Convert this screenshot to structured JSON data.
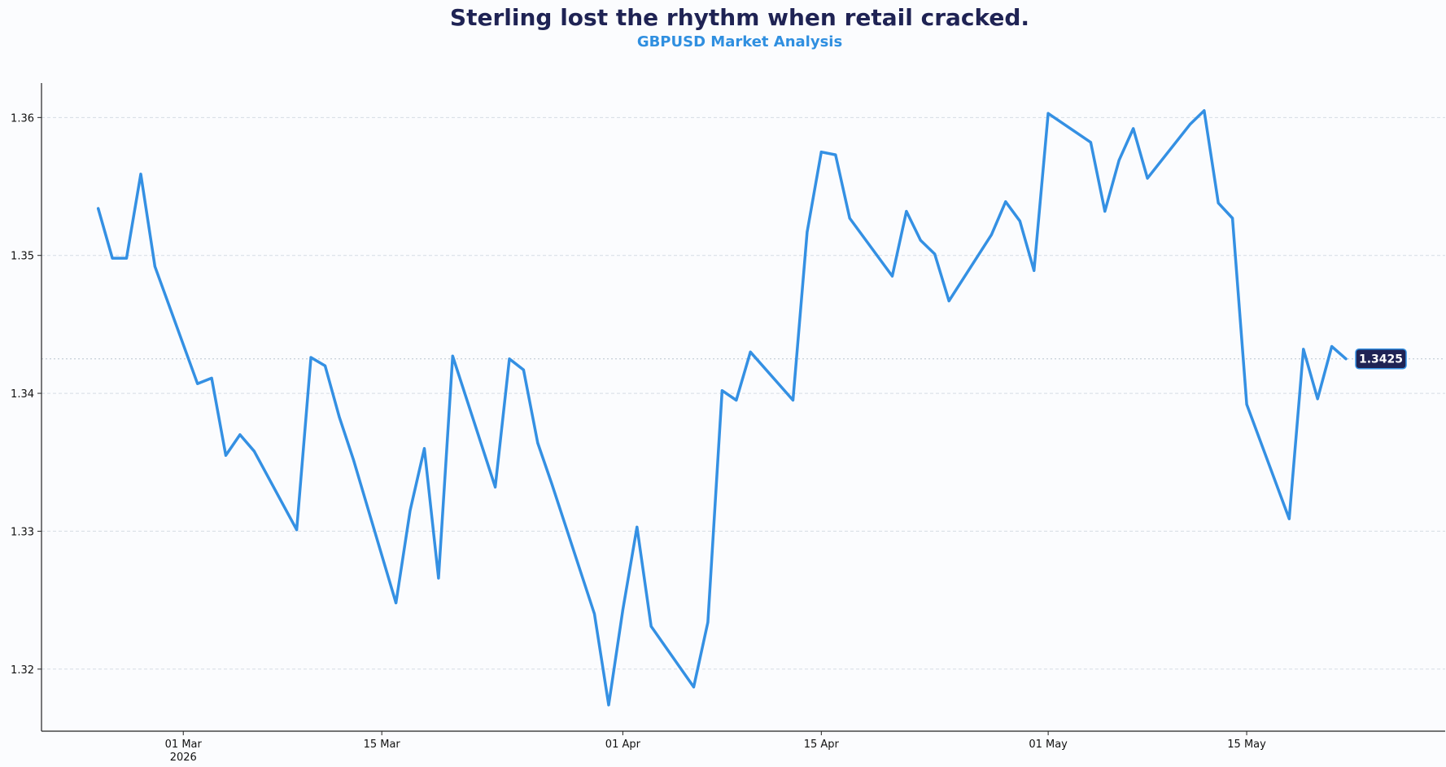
{
  "colors": {
    "title": "#1f2354",
    "subtitle": "#2f8fe0",
    "series": "#3490e3",
    "badge_bg": "#1f2354",
    "badge_text": "#ffffff"
  },
  "chart_data": {
    "type": "line",
    "title": "Sterling lost the rhythm when retail cracked.",
    "subtitle": "GBPUSD Market Analysis",
    "xlabel": "",
    "ylabel": "",
    "ylim": [
      1.3155,
      1.3625
    ],
    "xlim": [
      "2026-02-19",
      "2026-05-29"
    ],
    "grid": "horizontal-dashed",
    "yticks": [
      "1.32",
      "1.33",
      "1.34",
      "1.35",
      "1.36"
    ],
    "xticks": [
      {
        "date": "2026-03-01",
        "label": "01 Mar",
        "sublabel": "2026"
      },
      {
        "date": "2026-03-15",
        "label": "15 Mar",
        "sublabel": ""
      },
      {
        "date": "2026-04-01",
        "label": "01 Apr",
        "sublabel": ""
      },
      {
        "date": "2026-04-15",
        "label": "15 Apr",
        "sublabel": ""
      },
      {
        "date": "2026-05-01",
        "label": "01 May",
        "sublabel": ""
      },
      {
        "date": "2026-05-15",
        "label": "15 May",
        "sublabel": ""
      }
    ],
    "last_value_label": "1.3425",
    "last_value": 1.3425,
    "series": [
      {
        "points": [
          [
            "2026-02-23",
            1.3534
          ],
          [
            "2026-02-24",
            1.3498
          ],
          [
            "2026-02-25",
            1.3498
          ],
          [
            "2026-02-26",
            1.3559
          ],
          [
            "2026-02-27",
            1.3492
          ],
          [
            "2026-03-02",
            1.3407
          ],
          [
            "2026-03-03",
            1.3411
          ],
          [
            "2026-03-04",
            1.3355
          ],
          [
            "2026-03-05",
            1.337
          ],
          [
            "2026-03-06",
            1.3358
          ],
          [
            "2026-03-09",
            1.3301
          ],
          [
            "2026-03-10",
            1.3426
          ],
          [
            "2026-03-11",
            1.342
          ],
          [
            "2026-03-12",
            1.3383
          ],
          [
            "2026-03-13",
            1.3352
          ],
          [
            "2026-03-16",
            1.3248
          ],
          [
            "2026-03-17",
            1.3315
          ],
          [
            "2026-03-18",
            1.336
          ],
          [
            "2026-03-19",
            1.3266
          ],
          [
            "2026-03-20",
            1.3427
          ],
          [
            "2026-03-23",
            1.3332
          ],
          [
            "2026-03-24",
            1.3425
          ],
          [
            "2026-03-25",
            1.3417
          ],
          [
            "2026-03-26",
            1.3364
          ],
          [
            "2026-03-27",
            1.3334
          ],
          [
            "2026-03-30",
            1.324
          ],
          [
            "2026-03-31",
            1.3174
          ],
          [
            "2026-04-01",
            1.3243
          ],
          [
            "2026-04-02",
            1.3303
          ],
          [
            "2026-04-03",
            1.3231
          ],
          [
            "2026-04-06",
            1.3187
          ],
          [
            "2026-04-07",
            1.3234
          ],
          [
            "2026-04-08",
            1.3402
          ],
          [
            "2026-04-09",
            1.3395
          ],
          [
            "2026-04-10",
            1.343
          ],
          [
            "2026-04-13",
            1.3395
          ],
          [
            "2026-04-14",
            1.3517
          ],
          [
            "2026-04-15",
            1.3575
          ],
          [
            "2026-04-16",
            1.3573
          ],
          [
            "2026-04-17",
            1.3527
          ],
          [
            "2026-04-20",
            1.3485
          ],
          [
            "2026-04-21",
            1.3532
          ],
          [
            "2026-04-22",
            1.3511
          ],
          [
            "2026-04-23",
            1.3501
          ],
          [
            "2026-04-24",
            1.3467
          ],
          [
            "2026-04-27",
            1.3515
          ],
          [
            "2026-04-28",
            1.3539
          ],
          [
            "2026-04-29",
            1.3525
          ],
          [
            "2026-04-30",
            1.3489
          ],
          [
            "2026-05-01",
            1.3603
          ],
          [
            "2026-05-04",
            1.3582
          ],
          [
            "2026-05-05",
            1.3532
          ],
          [
            "2026-05-06",
            1.3569
          ],
          [
            "2026-05-07",
            1.3592
          ],
          [
            "2026-05-08",
            1.3556
          ],
          [
            "2026-05-11",
            1.3595
          ],
          [
            "2026-05-12",
            1.3605
          ],
          [
            "2026-05-13",
            1.3538
          ],
          [
            "2026-05-14",
            1.3527
          ],
          [
            "2026-05-15",
            1.3392
          ],
          [
            "2026-05-18",
            1.3309
          ],
          [
            "2026-05-19",
            1.3432
          ],
          [
            "2026-05-20",
            1.3396
          ],
          [
            "2026-05-21",
            1.3434
          ],
          [
            "2026-05-22",
            1.3425
          ]
        ]
      }
    ]
  }
}
